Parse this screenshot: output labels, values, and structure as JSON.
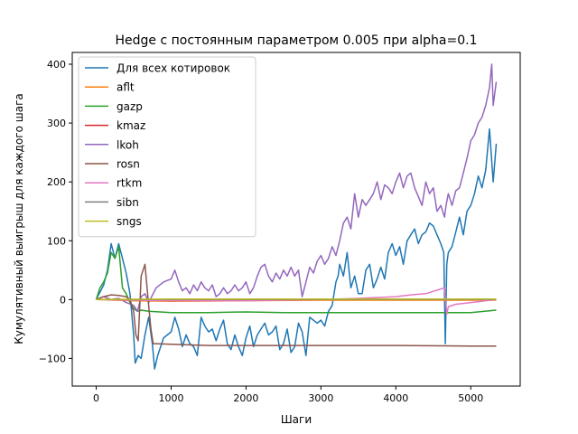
{
  "chart_data": {
    "type": "line",
    "title": "Hedge с постоянным параметром 0.005 при alpha=0.1",
    "xlabel": "Шаги",
    "ylabel": "Кумулятивный выигрыш для каждого шага",
    "xlim": [
      -320,
      5660
    ],
    "ylim": [
      -147,
      420
    ],
    "xticks": [
      0,
      1000,
      2000,
      3000,
      4000,
      5000
    ],
    "yticks": [
      -100,
      0,
      100,
      200,
      300,
      400
    ],
    "grid": false,
    "legend_position": "top-left",
    "series": [
      {
        "name": "Для всех котировок",
        "color": "#1f77b4",
        "points": [
          [
            0,
            0
          ],
          [
            100,
            25
          ],
          [
            150,
            50
          ],
          [
            200,
            95
          ],
          [
            250,
            70
          ],
          [
            300,
            95
          ],
          [
            350,
            70
          ],
          [
            400,
            45
          ],
          [
            450,
            10
          ],
          [
            500,
            -60
          ],
          [
            520,
            -108
          ],
          [
            560,
            -95
          ],
          [
            600,
            -100
          ],
          [
            650,
            -60
          ],
          [
            700,
            -30
          ],
          [
            750,
            -75
          ],
          [
            780,
            -118
          ],
          [
            820,
            -95
          ],
          [
            900,
            -65
          ],
          [
            950,
            -60
          ],
          [
            1000,
            -55
          ],
          [
            1050,
            -30
          ],
          [
            1100,
            -50
          ],
          [
            1150,
            -80
          ],
          [
            1200,
            -60
          ],
          [
            1250,
            -75
          ],
          [
            1300,
            -80
          ],
          [
            1350,
            -95
          ],
          [
            1400,
            -30
          ],
          [
            1450,
            -45
          ],
          [
            1500,
            -55
          ],
          [
            1550,
            -50
          ],
          [
            1600,
            -70
          ],
          [
            1650,
            -50
          ],
          [
            1700,
            -35
          ],
          [
            1750,
            -75
          ],
          [
            1800,
            -85
          ],
          [
            1850,
            -60
          ],
          [
            1900,
            -80
          ],
          [
            1950,
            -95
          ],
          [
            2000,
            -65
          ],
          [
            2050,
            -45
          ],
          [
            2100,
            -80
          ],
          [
            2150,
            -60
          ],
          [
            2200,
            -50
          ],
          [
            2250,
            -40
          ],
          [
            2300,
            -60
          ],
          [
            2350,
            -55
          ],
          [
            2400,
            -45
          ],
          [
            2450,
            -85
          ],
          [
            2500,
            -75
          ],
          [
            2550,
            -50
          ],
          [
            2600,
            -90
          ],
          [
            2650,
            -80
          ],
          [
            2700,
            -40
          ],
          [
            2750,
            -55
          ],
          [
            2800,
            -95
          ],
          [
            2850,
            -30
          ],
          [
            2900,
            -35
          ],
          [
            2950,
            -40
          ],
          [
            3000,
            -35
          ],
          [
            3050,
            -45
          ],
          [
            3100,
            -20
          ],
          [
            3150,
            -10
          ],
          [
            3200,
            30
          ],
          [
            3230,
            40
          ],
          [
            3250,
            60
          ],
          [
            3300,
            40
          ],
          [
            3350,
            80
          ],
          [
            3400,
            20
          ],
          [
            3450,
            40
          ],
          [
            3500,
            10
          ],
          [
            3550,
            10
          ],
          [
            3600,
            50
          ],
          [
            3650,
            60
          ],
          [
            3700,
            20
          ],
          [
            3750,
            35
          ],
          [
            3800,
            55
          ],
          [
            3850,
            35
          ],
          [
            3900,
            80
          ],
          [
            3950,
            95
          ],
          [
            4000,
            75
          ],
          [
            4050,
            90
          ],
          [
            4100,
            60
          ],
          [
            4150,
            100
          ],
          [
            4200,
            110
          ],
          [
            4250,
            120
          ],
          [
            4300,
            95
          ],
          [
            4350,
            110
          ],
          [
            4400,
            115
          ],
          [
            4450,
            130
          ],
          [
            4500,
            125
          ],
          [
            4550,
            110
          ],
          [
            4600,
            95
          ],
          [
            4640,
            80
          ],
          [
            4660,
            -75
          ],
          [
            4680,
            60
          ],
          [
            4700,
            80
          ],
          [
            4750,
            90
          ],
          [
            4800,
            115
          ],
          [
            4850,
            140
          ],
          [
            4900,
            110
          ],
          [
            4950,
            150
          ],
          [
            5000,
            160
          ],
          [
            5050,
            180
          ],
          [
            5100,
            210
          ],
          [
            5150,
            190
          ],
          [
            5200,
            220
          ],
          [
            5250,
            290
          ],
          [
            5300,
            200
          ],
          [
            5340,
            265
          ]
        ]
      },
      {
        "name": "aflt",
        "color": "#ff7f0e",
        "points": [
          [
            0,
            0
          ],
          [
            500,
            -2
          ],
          [
            1000,
            -3
          ],
          [
            2000,
            -2
          ],
          [
            3000,
            -1
          ],
          [
            4000,
            -1
          ],
          [
            5000,
            -1
          ],
          [
            5340,
            -1
          ]
        ]
      },
      {
        "name": "gazp",
        "color": "#2ca02c",
        "points": [
          [
            0,
            0
          ],
          [
            50,
            20
          ],
          [
            100,
            30
          ],
          [
            150,
            45
          ],
          [
            200,
            80
          ],
          [
            250,
            70
          ],
          [
            300,
            90
          ],
          [
            350,
            20
          ],
          [
            400,
            10
          ],
          [
            450,
            -5
          ],
          [
            500,
            -15
          ],
          [
            550,
            -20
          ],
          [
            600,
            -18
          ],
          [
            700,
            -20
          ],
          [
            1000,
            -22
          ],
          [
            1500,
            -22
          ],
          [
            2000,
            -21
          ],
          [
            2500,
            -22
          ],
          [
            3000,
            -22
          ],
          [
            3500,
            -22
          ],
          [
            4000,
            -22
          ],
          [
            4500,
            -22
          ],
          [
            4700,
            -22
          ],
          [
            5000,
            -22
          ],
          [
            5340,
            -18
          ]
        ]
      },
      {
        "name": "kmaz",
        "color": "#d62728",
        "points": [
          [
            0,
            0
          ],
          [
            1000,
            0
          ],
          [
            2000,
            0
          ],
          [
            3000,
            0
          ],
          [
            4000,
            0
          ],
          [
            5000,
            0
          ],
          [
            5340,
            0
          ]
        ]
      },
      {
        "name": "lkoh",
        "color": "#9467bd",
        "points": [
          [
            0,
            0
          ],
          [
            100,
            5
          ],
          [
            200,
            0
          ],
          [
            300,
            2
          ],
          [
            400,
            -5
          ],
          [
            500,
            -10
          ],
          [
            550,
            -20
          ],
          [
            600,
            5
          ],
          [
            650,
            10
          ],
          [
            700,
            -5
          ],
          [
            800,
            20
          ],
          [
            900,
            30
          ],
          [
            1000,
            35
          ],
          [
            1050,
            50
          ],
          [
            1100,
            30
          ],
          [
            1150,
            15
          ],
          [
            1200,
            20
          ],
          [
            1250,
            10
          ],
          [
            1300,
            25
          ],
          [
            1350,
            15
          ],
          [
            1400,
            30
          ],
          [
            1450,
            20
          ],
          [
            1500,
            15
          ],
          [
            1550,
            25
          ],
          [
            1600,
            5
          ],
          [
            1650,
            10
          ],
          [
            1700,
            20
          ],
          [
            1750,
            10
          ],
          [
            1800,
            15
          ],
          [
            1850,
            25
          ],
          [
            1900,
            15
          ],
          [
            1950,
            20
          ],
          [
            2000,
            30
          ],
          [
            2050,
            10
          ],
          [
            2100,
            20
          ],
          [
            2150,
            40
          ],
          [
            2200,
            55
          ],
          [
            2250,
            60
          ],
          [
            2300,
            40
          ],
          [
            2350,
            30
          ],
          [
            2400,
            45
          ],
          [
            2450,
            35
          ],
          [
            2500,
            50
          ],
          [
            2550,
            40
          ],
          [
            2600,
            55
          ],
          [
            2650,
            40
          ],
          [
            2700,
            50
          ],
          [
            2750,
            5
          ],
          [
            2800,
            30
          ],
          [
            2850,
            55
          ],
          [
            2900,
            45
          ],
          [
            2950,
            65
          ],
          [
            3000,
            75
          ],
          [
            3050,
            60
          ],
          [
            3100,
            70
          ],
          [
            3150,
            90
          ],
          [
            3200,
            75
          ],
          [
            3250,
            100
          ],
          [
            3300,
            130
          ],
          [
            3350,
            140
          ],
          [
            3400,
            120
          ],
          [
            3450,
            180
          ],
          [
            3500,
            140
          ],
          [
            3550,
            170
          ],
          [
            3600,
            160
          ],
          [
            3650,
            170
          ],
          [
            3700,
            180
          ],
          [
            3750,
            200
          ],
          [
            3800,
            170
          ],
          [
            3850,
            195
          ],
          [
            3900,
            190
          ],
          [
            3950,
            180
          ],
          [
            4000,
            200
          ],
          [
            4050,
            215
          ],
          [
            4100,
            190
          ],
          [
            4150,
            210
          ],
          [
            4200,
            215
          ],
          [
            4250,
            190
          ],
          [
            4300,
            175
          ],
          [
            4350,
            160
          ],
          [
            4400,
            200
          ],
          [
            4450,
            180
          ],
          [
            4500,
            190
          ],
          [
            4550,
            150
          ],
          [
            4600,
            160
          ],
          [
            4650,
            140
          ],
          [
            4670,
            160
          ],
          [
            4700,
            180
          ],
          [
            4750,
            160
          ],
          [
            4800,
            185
          ],
          [
            4850,
            190
          ],
          [
            4900,
            215
          ],
          [
            4950,
            240
          ],
          [
            5000,
            270
          ],
          [
            5050,
            280
          ],
          [
            5100,
            300
          ],
          [
            5150,
            310
          ],
          [
            5200,
            330
          ],
          [
            5250,
            360
          ],
          [
            5280,
            400
          ],
          [
            5300,
            330
          ],
          [
            5340,
            370
          ]
        ]
      },
      {
        "name": "rosn",
        "color": "#8c564b",
        "points": [
          [
            0,
            0
          ],
          [
            100,
            5
          ],
          [
            200,
            8
          ],
          [
            300,
            7
          ],
          [
            400,
            5
          ],
          [
            450,
            0
          ],
          [
            500,
            -20
          ],
          [
            530,
            -60
          ],
          [
            560,
            -70
          ],
          [
            600,
            40
          ],
          [
            650,
            60
          ],
          [
            700,
            -10
          ],
          [
            730,
            -50
          ],
          [
            760,
            -75
          ],
          [
            800,
            -75
          ],
          [
            1000,
            -76
          ],
          [
            1500,
            -78
          ],
          [
            2000,
            -78
          ],
          [
            3000,
            -78
          ],
          [
            4000,
            -78
          ],
          [
            5000,
            -79
          ],
          [
            5340,
            -79
          ]
        ]
      },
      {
        "name": "rtkm",
        "color": "#e377c2",
        "points": [
          [
            0,
            0
          ],
          [
            1000,
            -2
          ],
          [
            2000,
            -2
          ],
          [
            3000,
            0
          ],
          [
            3500,
            2
          ],
          [
            4000,
            5
          ],
          [
            4200,
            8
          ],
          [
            4400,
            10
          ],
          [
            4500,
            14
          ],
          [
            4600,
            18
          ],
          [
            4650,
            20
          ],
          [
            4680,
            -25
          ],
          [
            4700,
            -12
          ],
          [
            4800,
            -8
          ],
          [
            5000,
            -5
          ],
          [
            5200,
            -2
          ],
          [
            5340,
            0
          ]
        ]
      },
      {
        "name": "sibn",
        "color": "#7f7f7f",
        "points": [
          [
            0,
            0
          ],
          [
            1000,
            0
          ],
          [
            2000,
            0
          ],
          [
            3000,
            0
          ],
          [
            4000,
            0
          ],
          [
            5000,
            0
          ],
          [
            5340,
            0
          ]
        ]
      },
      {
        "name": "sngs",
        "color": "#bcbd22",
        "points": [
          [
            0,
            0
          ],
          [
            1000,
            1
          ],
          [
            2000,
            1
          ],
          [
            3000,
            1
          ],
          [
            4000,
            1
          ],
          [
            5000,
            1
          ],
          [
            5340,
            1
          ]
        ]
      }
    ]
  }
}
